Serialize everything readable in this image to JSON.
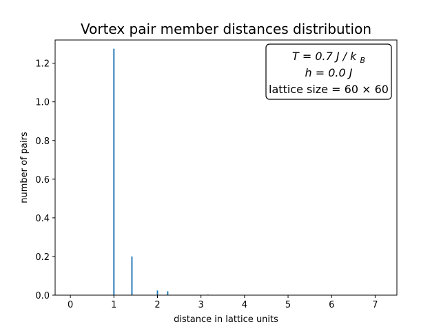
{
  "chart_data": {
    "type": "bar",
    "title": "Vortex pair member distances distribution",
    "xlabel": "distance in lattice units",
    "ylabel": "number of pairs",
    "xlim": [
      -0.35,
      7.5
    ],
    "ylim": [
      0,
      1.32
    ],
    "xticks": [
      0,
      1,
      2,
      3,
      4,
      5,
      6,
      7
    ],
    "yticks": [
      0.0,
      0.2,
      0.4,
      0.6,
      0.8,
      1.0,
      1.2
    ],
    "xtick_labels": [
      "0",
      "1",
      "2",
      "3",
      "4",
      "5",
      "6",
      "7"
    ],
    "ytick_labels": [
      "0.0",
      "0.2",
      "0.4",
      "0.6",
      "0.8",
      "1.0",
      "1.2"
    ],
    "bars": [
      {
        "x": 1.0,
        "value": 1.275
      },
      {
        "x": 1.414,
        "value": 0.2
      },
      {
        "x": 2.0,
        "value": 0.024
      },
      {
        "x": 2.236,
        "value": 0.02
      },
      {
        "x": 3.162,
        "value": 0.003
      }
    ],
    "bar_width_units": 0.03,
    "bar_color": "#1f77b4",
    "grid": false,
    "annotation": {
      "placement": "top-right",
      "line1_lhs": "T",
      "line1_rhs": "0.7 J / k",
      "line1_sub": "B",
      "line2_lhs": "h",
      "line2_rhs": "0.0 J",
      "line3_text": "lattice size",
      "line3_rhs": "60 × 60",
      "equals": "="
    }
  }
}
